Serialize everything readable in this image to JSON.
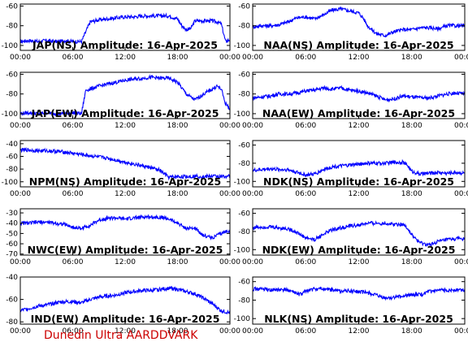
{
  "footer": "Dunedin Ultra AARDDVARK",
  "x_ticks": [
    "00:00",
    "06:00",
    "12:00",
    "18:00",
    "00:00"
  ],
  "series_color": "#0000ff",
  "chart_data": [
    {
      "type": "line",
      "title": "JAP(NS) Amplitude: 16-Apr-2025",
      "ylim": [
        -105,
        -58
      ],
      "yticks": [
        -100,
        -80,
        -60
      ],
      "x": [
        0,
        1,
        2,
        3,
        4,
        4.5,
        5,
        6,
        7,
        8,
        9,
        10,
        11,
        12,
        13,
        14,
        15,
        16,
        17,
        18,
        18.5,
        19,
        19.5,
        20,
        21,
        22,
        22.5,
        23,
        23.5,
        24
      ],
      "values": [
        -96,
        -95,
        -96,
        -95,
        -96,
        -96,
        -95,
        -96,
        -96,
        -76,
        -74,
        -73,
        -72,
        -71,
        -71,
        -70,
        -70,
        -70,
        -70,
        -73,
        -80,
        -84,
        -83,
        -75,
        -75,
        -75,
        -76,
        -78,
        -96,
        -94
      ]
    },
    {
      "type": "line",
      "title": "NAA(NS) Amplitude: 16-Apr-2025",
      "ylim": [
        -105,
        -58
      ],
      "yticks": [
        -100,
        -80,
        -60
      ],
      "x": [
        0,
        1,
        2,
        3,
        4,
        5,
        6,
        7,
        8,
        9,
        10,
        11,
        12,
        12.5,
        13,
        14,
        15,
        16,
        17,
        17.5,
        18,
        19,
        20,
        21,
        22,
        23,
        24
      ],
      "values": [
        -81,
        -80,
        -80,
        -79,
        -76,
        -72,
        -71,
        -73,
        -69,
        -64,
        -63,
        -65,
        -67,
        -72,
        -80,
        -88,
        -90,
        -86,
        -84,
        -84,
        -84,
        -82,
        -82,
        -83,
        -80,
        -80,
        -80
      ]
    },
    {
      "type": "line",
      "title": "JAP(EW) Amplitude: 16-Apr-2025",
      "ylim": [
        -105,
        -58
      ],
      "yticks": [
        -100,
        -80,
        -60
      ],
      "x": [
        0,
        1,
        2,
        3,
        4,
        5,
        6,
        7,
        7.5,
        8,
        9,
        10,
        11,
        12,
        13,
        14,
        15,
        16,
        17,
        18,
        19,
        20,
        21,
        22,
        22.5,
        23,
        23.5,
        24
      ],
      "values": [
        -100,
        -99,
        -100,
        -99,
        -100,
        -100,
        -99,
        -100,
        -76,
        -75,
        -72,
        -70,
        -68,
        -66,
        -65,
        -64,
        -63,
        -64,
        -64,
        -68,
        -80,
        -86,
        -80,
        -75,
        -72,
        -75,
        -90,
        -95
      ]
    },
    {
      "type": "line",
      "title": "NAA(EW) Amplitude: 16-Apr-2025",
      "ylim": [
        -105,
        -58
      ],
      "yticks": [
        -100,
        -80,
        -60
      ],
      "x": [
        0,
        1,
        2,
        3,
        4,
        5,
        6,
        7,
        8,
        9,
        10,
        11,
        12,
        13,
        14,
        15,
        16,
        17,
        18,
        19,
        20,
        21,
        22,
        23,
        24
      ],
      "values": [
        -84,
        -83,
        -82,
        -80,
        -80,
        -79,
        -77,
        -76,
        -74,
        -75,
        -74,
        -76,
        -77,
        -79,
        -82,
        -86,
        -85,
        -82,
        -83,
        -84,
        -84,
        -82,
        -80,
        -79,
        -80
      ]
    },
    {
      "type": "line",
      "title": "NPM(NS) Amplitude: 16-Apr-2025",
      "ylim": [
        -108,
        -35
      ],
      "yticks": [
        -100,
        -80,
        -60,
        -40
      ],
      "x": [
        0,
        1,
        2,
        3,
        4,
        5,
        6,
        7,
        8,
        9,
        10,
        11,
        12,
        13,
        14,
        15,
        16,
        16.5,
        17,
        18,
        19,
        20,
        21,
        22,
        23,
        24
      ],
      "values": [
        -50,
        -50,
        -51,
        -51,
        -52,
        -53,
        -55,
        -57,
        -59,
        -61,
        -63,
        -66,
        -69,
        -72,
        -75,
        -78,
        -82,
        -88,
        -93,
        -92,
        -92,
        -91,
        -92,
        -91,
        -92,
        -91
      ]
    },
    {
      "type": "line",
      "title": "NDK(NS) Amplitude: 16-Apr-2025",
      "ylim": [
        -106,
        -55
      ],
      "yticks": [
        -100,
        -80,
        -60
      ],
      "x": [
        0,
        1,
        2,
        3,
        4,
        5,
        6,
        7,
        8,
        9,
        10,
        11,
        12,
        13,
        14,
        15,
        16,
        17,
        17.5,
        18,
        19,
        20,
        21,
        22,
        23,
        24
      ],
      "values": [
        -88,
        -87,
        -86,
        -87,
        -87,
        -90,
        -93,
        -92,
        -87,
        -84,
        -83,
        -82,
        -81,
        -80,
        -80,
        -80,
        -79,
        -79,
        -82,
        -89,
        -92,
        -91,
        -90,
        -91,
        -90,
        -91
      ]
    },
    {
      "type": "line",
      "title": "NWC(EW) Amplitude: 16-Apr-2025",
      "ylim": [
        -71,
        -26
      ],
      "yticks": [
        -70,
        -60,
        -50,
        -40,
        -30
      ],
      "x": [
        0,
        1,
        2,
        3,
        4,
        5,
        6,
        7,
        8,
        9,
        10,
        11,
        12,
        13,
        14,
        15,
        16,
        17,
        18,
        19,
        20,
        21,
        22,
        23,
        24
      ],
      "values": [
        -40,
        -40,
        -39,
        -39,
        -40,
        -41,
        -44,
        -45,
        -42,
        -37,
        -35,
        -35,
        -36,
        -35,
        -34,
        -34,
        -34,
        -36,
        -40,
        -45,
        -45,
        -52,
        -54,
        -50,
        -47
      ]
    },
    {
      "type": "line",
      "title": "NDK(EW) Amplitude: 16-Apr-2025",
      "ylim": [
        -106,
        -55
      ],
      "yticks": [
        -100,
        -80,
        -60
      ],
      "x": [
        0,
        1,
        2,
        3,
        4,
        5,
        6,
        7,
        8,
        9,
        10,
        11,
        12,
        13,
        14,
        15,
        16,
        17,
        17.5,
        18,
        19,
        20,
        21,
        22,
        23,
        24
      ],
      "values": [
        -76,
        -75,
        -75,
        -76,
        -77,
        -81,
        -87,
        -89,
        -83,
        -78,
        -76,
        -74,
        -73,
        -71,
        -71,
        -71,
        -72,
        -72,
        -76,
        -84,
        -93,
        -95,
        -91,
        -89,
        -88,
        -88
      ]
    },
    {
      "type": "line",
      "title": "IND(EW) Amplitude: 16-Apr-2025",
      "ylim": [
        -82,
        -40
      ],
      "yticks": [
        -80,
        -60,
        -40
      ],
      "x": [
        0,
        1,
        2,
        3,
        4,
        5,
        6,
        7,
        8,
        9,
        10,
        11,
        12,
        13,
        14,
        15,
        16,
        17,
        18,
        19,
        20,
        21,
        22,
        23,
        24
      ],
      "values": [
        -70,
        -68,
        -66,
        -65,
        -63,
        -62,
        -62,
        -63,
        -60,
        -58,
        -57,
        -56,
        -54,
        -53,
        -52,
        -52,
        -51,
        -50,
        -51,
        -53,
        -55,
        -59,
        -64,
        -70,
        -72
      ]
    },
    {
      "type": "line",
      "title": "NLK(NS) Amplitude: 16-Apr-2025",
      "ylim": [
        -106,
        -55
      ],
      "yticks": [
        -100,
        -80,
        -60
      ],
      "x": [
        0,
        1,
        2,
        3,
        4,
        5,
        5.5,
        6,
        7,
        8,
        9,
        10,
        11,
        12,
        13,
        14,
        15,
        16,
        17,
        18,
        19,
        20,
        21,
        22,
        23,
        24
      ],
      "values": [
        -68,
        -68,
        -69,
        -69,
        -69,
        -73,
        -74,
        -70,
        -68,
        -68,
        -69,
        -70,
        -70,
        -71,
        -72,
        -75,
        -78,
        -77,
        -76,
        -74,
        -74,
        -71,
        -70,
        -69,
        -69,
        -69
      ]
    }
  ]
}
